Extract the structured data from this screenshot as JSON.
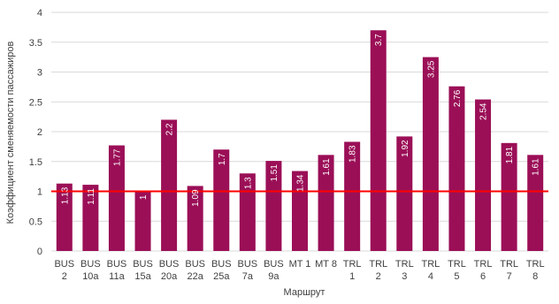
{
  "chart_data": {
    "type": "bar",
    "title": "",
    "xlabel": "Маршрут",
    "ylabel": "Коэффициент сменяемости пассажиров",
    "ylim": [
      0,
      4
    ],
    "yticks": [
      "0",
      "0.5",
      "1",
      "1.5",
      "2",
      "2.5",
      "3",
      "3.5",
      "4"
    ],
    "categories": [
      [
        "BUS",
        "2"
      ],
      [
        "BUS",
        "10a"
      ],
      [
        "BUS",
        "11a"
      ],
      [
        "BUS",
        "15a"
      ],
      [
        "BUS",
        "20a"
      ],
      [
        "BUS",
        "22a"
      ],
      [
        "BUS",
        "25a"
      ],
      [
        "BUS",
        "7a"
      ],
      [
        "BUS",
        "9a"
      ],
      [
        "MT 1"
      ],
      [
        "MT 8"
      ],
      [
        "TRL",
        "1"
      ],
      [
        "TRL",
        "2"
      ],
      [
        "TRL",
        "3"
      ],
      [
        "TRL",
        "4"
      ],
      [
        "TRL",
        "5"
      ],
      [
        "TRL",
        "6"
      ],
      [
        "TRL",
        "7"
      ],
      [
        "TRL",
        "8"
      ]
    ],
    "values": [
      1.13,
      1.11,
      1.77,
      1,
      2.2,
      1.09,
      1.7,
      1.3,
      1.51,
      1.34,
      1.61,
      1.83,
      3.7,
      1.92,
      3.25,
      2.76,
      2.54,
      1.81,
      1.61
    ],
    "data_labels": [
      "1.13",
      "1.11",
      "1.77",
      "1",
      "2.2",
      "1.09",
      "1.7",
      "1.3",
      "1.51",
      "1.34",
      "1.61",
      "1.83",
      "3.7",
      "1.92",
      "3.25",
      "2.76",
      "2.54",
      "1.81",
      "1.61"
    ],
    "reference_line": {
      "y": 1,
      "color": "#ff0000"
    },
    "bar_color": "#9b0f57",
    "grid": true,
    "grid_color": "#d9d9d9",
    "legend": false
  }
}
